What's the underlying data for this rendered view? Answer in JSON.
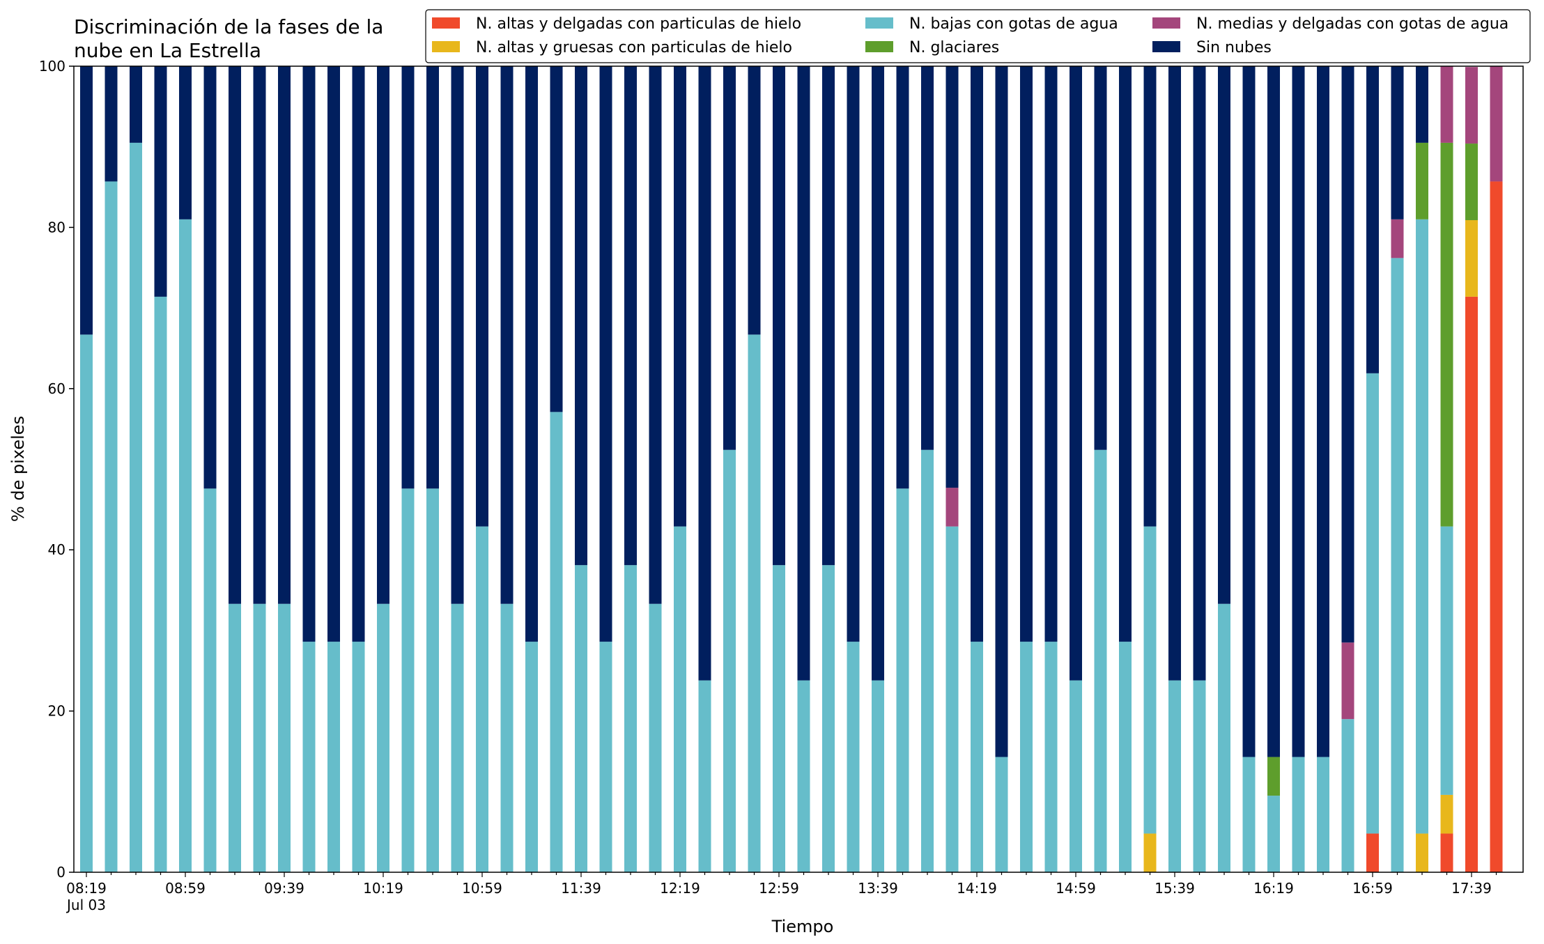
{
  "chart_data": {
    "type": "bar",
    "stacked": true,
    "title": "Discriminación de la fases de la nube en La Estrella",
    "xlabel": "Tiempo",
    "ylabel": "% de pixeles",
    "ylim": [
      0,
      100
    ],
    "yticks": [
      0,
      20,
      40,
      60,
      80,
      100
    ],
    "xtick_labels": [
      "08:19",
      "08:59",
      "09:39",
      "10:19",
      "10:59",
      "11:39",
      "12:19",
      "12:59",
      "13:39",
      "14:19",
      "14:59",
      "15:39",
      "16:19",
      "16:59",
      "17:39"
    ],
    "xtick_sublabel": "Jul 03",
    "legend_position": "top-right",
    "categories": [
      "08:19",
      "08:29",
      "08:39",
      "08:49",
      "08:59",
      "09:09",
      "09:19",
      "09:29",
      "09:39",
      "09:49",
      "09:59",
      "10:09",
      "10:19",
      "10:29",
      "10:39",
      "10:49",
      "10:59",
      "11:09",
      "11:19",
      "11:29",
      "11:39",
      "11:49",
      "11:59",
      "12:09",
      "12:19",
      "12:29",
      "12:39",
      "12:49",
      "12:59",
      "13:09",
      "13:19",
      "13:29",
      "13:39",
      "13:49",
      "13:59",
      "14:09",
      "14:19",
      "14:29",
      "14:39",
      "14:49",
      "14:59",
      "15:09",
      "15:19",
      "15:29",
      "15:39",
      "15:49",
      "15:59",
      "16:09",
      "16:19",
      "16:29",
      "16:39",
      "16:49",
      "16:59",
      "17:09",
      "17:19",
      "17:29",
      "17:39",
      "17:49"
    ],
    "series": [
      {
        "name": "N. altas y delgadas con particulas de hielo",
        "color": "#f04a2b",
        "values": [
          0,
          0,
          0,
          0,
          0,
          0,
          0,
          0,
          0,
          0,
          0,
          0,
          0,
          0,
          0,
          0,
          0,
          0,
          0,
          0,
          0,
          0,
          0,
          0,
          0,
          0,
          0,
          0,
          0,
          0,
          0,
          0,
          0,
          0,
          0,
          0,
          0,
          0,
          0,
          0,
          0,
          0,
          0,
          0,
          0,
          0,
          0,
          0,
          0,
          0,
          0,
          0,
          4.8,
          0,
          0,
          4.8,
          71.4,
          85.7
        ]
      },
      {
        "name": "N. altas y gruesas con particulas de hielo",
        "color": "#e8b71c",
        "values": [
          0,
          0,
          0,
          0,
          0,
          0,
          0,
          0,
          0,
          0,
          0,
          0,
          0,
          0,
          0,
          0,
          0,
          0,
          0,
          0,
          0,
          0,
          0,
          0,
          0,
          0,
          0,
          0,
          0,
          0,
          0,
          0,
          0,
          0,
          0,
          0,
          0,
          0,
          0,
          0,
          0,
          0,
          0,
          4.8,
          0,
          0,
          0,
          0,
          0,
          0,
          0,
          0,
          0,
          0,
          4.8,
          4.8,
          9.5,
          0
        ]
      },
      {
        "name": "N. bajas con gotas de agua",
        "color": "#66bdca",
        "values": [
          66.7,
          85.7,
          90.5,
          71.4,
          81.0,
          47.6,
          33.3,
          33.3,
          33.3,
          28.6,
          28.6,
          28.6,
          33.3,
          47.6,
          47.6,
          33.3,
          42.9,
          33.3,
          28.6,
          57.1,
          38.1,
          28.6,
          38.1,
          33.3,
          42.9,
          23.8,
          52.4,
          66.7,
          38.1,
          23.8,
          38.1,
          28.6,
          23.8,
          47.6,
          52.4,
          42.9,
          28.6,
          14.3,
          28.6,
          28.6,
          23.8,
          52.4,
          28.6,
          38.1,
          23.8,
          23.8,
          33.3,
          14.3,
          9.5,
          14.3,
          14.3,
          19.0,
          57.1,
          76.2,
          76.2,
          33.3,
          0,
          0
        ]
      },
      {
        "name": "N. glaciares",
        "color": "#5e9e2c",
        "values": [
          0,
          0,
          0,
          0,
          0,
          0,
          0,
          0,
          0,
          0,
          0,
          0,
          0,
          0,
          0,
          0,
          0,
          0,
          0,
          0,
          0,
          0,
          0,
          0,
          0,
          0,
          0,
          0,
          0,
          0,
          0,
          0,
          0,
          0,
          0,
          0,
          0,
          0,
          0,
          0,
          0,
          0,
          0,
          0,
          0,
          0,
          0,
          0,
          4.8,
          0,
          0,
          0,
          0,
          0,
          9.5,
          47.6,
          9.5,
          0
        ]
      },
      {
        "name": "N. medias y delgadas con gotas de agua",
        "color": "#a4467c",
        "values": [
          0,
          0,
          0,
          0,
          0,
          0,
          0,
          0,
          0,
          0,
          0,
          0,
          0,
          0,
          0,
          0,
          0,
          0,
          0,
          0,
          0,
          0,
          0,
          0,
          0,
          0,
          0,
          0,
          0,
          0,
          0,
          0,
          0,
          0,
          0,
          4.8,
          0,
          0,
          0,
          0,
          0,
          0,
          0,
          0,
          0,
          0,
          0,
          0,
          0,
          0,
          0,
          9.5,
          0,
          4.8,
          0,
          9.5,
          9.5,
          14.3
        ]
      },
      {
        "name": "Sin nubes",
        "color": "#011f5e",
        "values": [
          33.3,
          14.3,
          9.5,
          28.6,
          19.0,
          52.4,
          66.7,
          66.7,
          66.7,
          71.4,
          71.4,
          71.4,
          66.7,
          52.4,
          52.4,
          66.7,
          57.1,
          66.7,
          71.4,
          42.9,
          61.9,
          71.4,
          61.9,
          66.7,
          57.1,
          76.2,
          47.6,
          33.3,
          61.9,
          76.2,
          61.9,
          71.4,
          76.2,
          52.4,
          47.6,
          52.3,
          71.4,
          85.7,
          71.4,
          71.4,
          76.2,
          47.6,
          71.4,
          57.1,
          76.2,
          76.2,
          66.7,
          85.7,
          85.7,
          85.7,
          85.7,
          71.5,
          38.1,
          19.0,
          9.5,
          0,
          0,
          0
        ]
      }
    ]
  }
}
